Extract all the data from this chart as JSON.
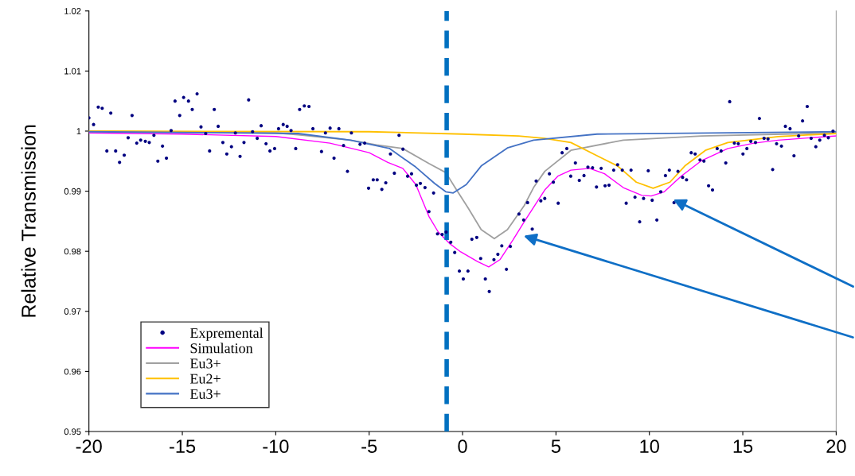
{
  "chart_data": {
    "type": "line",
    "ylabel": "Relative Transmission",
    "xlim": [
      -20,
      20
    ],
    "ylim": [
      0.95,
      1.02
    ],
    "xticks": [
      -20,
      -15,
      -10,
      -5,
      0,
      5,
      10,
      15,
      20
    ],
    "yticks": [
      0.95,
      0.96,
      0.97,
      0.98,
      0.99,
      1,
      1.01,
      1.02
    ],
    "legend": "bottom left",
    "ref_lines": [
      {
        "axis": "x",
        "value": -0.85,
        "color": "#0070c0",
        "line_style": "dashed"
      }
    ],
    "series": [
      {
        "name": "Expremental",
        "type": "scatter",
        "marker": "circle",
        "color": "#000080",
        "x": [
          -20.0,
          -19.75,
          -19.5,
          -19.29,
          -19.04,
          -18.83,
          -18.57,
          -18.36,
          -18.11,
          -17.9,
          -17.69,
          -17.44,
          -17.23,
          -16.98,
          -16.77,
          -16.52,
          -16.31,
          -16.06,
          -15.85,
          -15.6,
          -15.39,
          -15.14,
          -14.93,
          -14.67,
          -14.47,
          -14.21,
          -14.0,
          -13.75,
          -13.54,
          -13.29,
          -13.08,
          -12.83,
          -12.62,
          -12.37,
          -12.16,
          -11.91,
          -11.7,
          -11.45,
          -11.24,
          -10.99,
          -10.78,
          -10.52,
          -10.31,
          -10.06,
          -9.85,
          -9.6,
          -9.39,
          -9.18,
          -8.93,
          -8.72,
          -8.47,
          -8.22,
          -8.01,
          -7.55,
          -7.34,
          -7.09,
          -6.88,
          -6.62,
          -6.37,
          -6.16,
          -5.95,
          -5.49,
          -5.24,
          -5.03,
          -4.78,
          -4.57,
          -4.32,
          -4.11,
          -3.86,
          -3.65,
          -3.4,
          -3.19,
          -2.94,
          -2.73,
          -2.47,
          -2.26,
          -2.01,
          -1.8,
          -1.55,
          -1.34,
          -1.09,
          -0.88,
          -0.63,
          -0.42,
          -0.17,
          0.04,
          0.29,
          0.5,
          0.76,
          0.97,
          1.22,
          1.43,
          1.68,
          1.89,
          2.1,
          2.35,
          2.56,
          3.02,
          3.27,
          3.48,
          3.73,
          3.94,
          4.19,
          4.4,
          4.65,
          4.86,
          5.12,
          5.33,
          5.58,
          5.79,
          6.04,
          6.25,
          6.5,
          6.71,
          6.96,
          7.17,
          7.42,
          7.63,
          7.84,
          8.09,
          8.3,
          8.55,
          8.76,
          9.02,
          9.23,
          9.48,
          9.69,
          9.94,
          10.15,
          10.4,
          10.61,
          10.86,
          11.07,
          11.32,
          11.53,
          11.78,
          11.99,
          12.24,
          12.45,
          12.71,
          12.92,
          13.17,
          13.38,
          13.63,
          13.84,
          14.09,
          14.3,
          14.55,
          14.76,
          15.01,
          15.22,
          15.43,
          15.68,
          15.89,
          16.14,
          16.35,
          16.6,
          16.81,
          17.07,
          17.28,
          17.53,
          17.74,
          17.99,
          18.2,
          18.45,
          18.66,
          18.91,
          19.12,
          19.37,
          19.58,
          19.83
        ],
        "values": [
          1.0022,
          1.0011,
          1.004,
          1.0038,
          0.9967,
          1.003,
          0.9967,
          0.9948,
          0.996,
          0.9989,
          1.0026,
          0.998,
          0.9985,
          0.9983,
          0.9981,
          0.9993,
          0.995,
          0.9975,
          0.9955,
          1.0001,
          1.005,
          1.0026,
          1.0056,
          1.005,
          1.0036,
          1.0062,
          1.0007,
          0.9996,
          0.9967,
          1.0036,
          1.0008,
          0.9981,
          0.9962,
          0.9974,
          0.9997,
          0.9958,
          0.9981,
          1.0052,
          0.9999,
          0.9988,
          1.0009,
          0.9979,
          0.9967,
          0.9971,
          1.0004,
          1.0011,
          1.0008,
          1.0001,
          0.9971,
          1.0036,
          1.0042,
          1.0041,
          1.0004,
          0.9966,
          0.9997,
          1.0005,
          0.9955,
          1.0004,
          0.9976,
          0.9933,
          0.9997,
          0.9978,
          0.998,
          0.9905,
          0.9919,
          0.9919,
          0.9903,
          0.9914,
          0.9962,
          0.993,
          0.9993,
          0.997,
          0.9925,
          0.9929,
          0.991,
          0.9913,
          0.9906,
          0.9866,
          0.9897,
          0.9829,
          0.9828,
          0.9832,
          0.9815,
          0.9798,
          0.9767,
          0.9754,
          0.9767,
          0.982,
          0.9823,
          0.9788,
          0.9754,
          0.9733,
          0.9786,
          0.9795,
          0.9809,
          0.977,
          0.9808,
          0.9862,
          0.9852,
          0.9881,
          0.9837,
          0.9917,
          0.9884,
          0.9888,
          0.9929,
          0.9915,
          0.988,
          0.9964,
          0.9971,
          0.9925,
          0.9947,
          0.9918,
          0.9926,
          0.994,
          0.9939,
          0.9907,
          0.9938,
          0.9909,
          0.991,
          0.9935,
          0.9944,
          0.9935,
          0.988,
          0.9935,
          0.989,
          0.9849,
          0.9888,
          0.9934,
          0.9885,
          0.9852,
          0.9899,
          0.9926,
          0.9935,
          0.9881,
          0.9933,
          0.9923,
          0.9919,
          0.9964,
          0.9962,
          0.9952,
          0.995,
          0.9909,
          0.9902,
          0.9971,
          0.9967,
          0.9947,
          1.0049,
          0.998,
          0.9979,
          0.9962,
          0.9971,
          0.9983,
          0.9981,
          1.0021,
          0.9988,
          0.9987,
          0.9936,
          0.9979,
          0.9975,
          1.0008,
          1.0004,
          0.9959,
          0.9992,
          1.0017,
          1.0041,
          0.9988,
          0.9974,
          0.9985,
          0.9993,
          0.9989,
          1.0
        ]
      },
      {
        "name": "Simulation",
        "color": "#ff00ff",
        "x": [
          -20,
          -15,
          -10,
          -7.1,
          -5,
          -4,
          -3.2,
          -2.5,
          -1.8,
          -1.3,
          -0.7,
          -0.1,
          0.8,
          1.4,
          2,
          2.7,
          3.3,
          4.4,
          5.1,
          5.8,
          6.8,
          7.6,
          8.6,
          9.6,
          10.1,
          10.8,
          11.7,
          12.8,
          14.2,
          15.6,
          16.9,
          20
        ],
        "values": [
          0.9997,
          0.9995,
          0.9991,
          0.998,
          0.9964,
          0.9948,
          0.9938,
          0.9911,
          0.9858,
          0.9832,
          0.9813,
          0.9799,
          0.9783,
          0.9774,
          0.9786,
          0.9819,
          0.9849,
          0.9902,
          0.9925,
          0.9935,
          0.9938,
          0.9929,
          0.9906,
          0.9893,
          0.9892,
          0.9899,
          0.9925,
          0.9951,
          0.9971,
          0.998,
          0.9985,
          0.9992
        ]
      },
      {
        "name": "Eu3+",
        "color": "#a0a0a0",
        "x": [
          -20,
          -10,
          -8.8,
          -6,
          -4.6,
          -3.2,
          -1.8,
          -0.9,
          -0.4,
          0.3,
          1,
          1.7,
          2.4,
          3.3,
          3.8,
          4.4,
          5.8,
          8.6,
          12.8,
          20
        ],
        "values": [
          1.0,
          0.9997,
          0.9994,
          0.9985,
          0.9977,
          0.9971,
          0.9946,
          0.9931,
          0.9906,
          0.9872,
          0.9836,
          0.9821,
          0.9836,
          0.9876,
          0.9906,
          0.9933,
          0.9968,
          0.9985,
          0.9992,
          0.9997
        ]
      },
      {
        "name": "Eu2+",
        "color": "#ffc000",
        "x": [
          -20,
          -5,
          0,
          3,
          4.4,
          5.8,
          7.2,
          8.3,
          9.3,
          10.2,
          11.1,
          11.9,
          13,
          14.2,
          16.9,
          20
        ],
        "values": [
          1.0,
          0.9999,
          0.9995,
          0.9992,
          0.9988,
          0.9981,
          0.9959,
          0.9942,
          0.9915,
          0.9905,
          0.9915,
          0.9942,
          0.9968,
          0.9981,
          0.9991,
          0.9996
        ]
      },
      {
        "name": "Eu3+",
        "color": "#4472c4",
        "x": [
          -20,
          -8.8,
          -6,
          -3.9,
          -2.5,
          -1.5,
          -0.9,
          -0.5,
          0.2,
          1,
          2.4,
          3.8,
          7.2,
          20
        ],
        "values": [
          0.9999,
          0.9996,
          0.9985,
          0.9971,
          0.994,
          0.9913,
          0.9899,
          0.9897,
          0.9911,
          0.9942,
          0.9972,
          0.9985,
          0.9995,
          0.9999
        ]
      }
    ]
  }
}
